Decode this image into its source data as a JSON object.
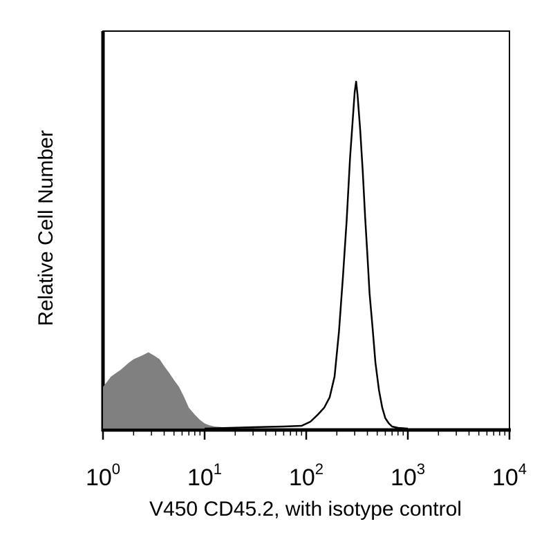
{
  "chart_data": {
    "type": "area",
    "xlabel": "V450 CD45.2, with isotype control",
    "ylabel": "Relative Cell Number",
    "x_scale": "log",
    "xlim": [
      1,
      10000
    ],
    "ylim": [
      0,
      1
    ],
    "grid": false,
    "legend": "none",
    "tick_labels": [
      {
        "value": 1,
        "base": "10",
        "exp": "0"
      },
      {
        "value": 10,
        "base": "10",
        "exp": "1"
      },
      {
        "value": 100,
        "base": "10",
        "exp": "2"
      },
      {
        "value": 1000,
        "base": "10",
        "exp": "3"
      },
      {
        "value": 10000,
        "base": "10",
        "exp": "4"
      }
    ],
    "series": [
      {
        "style": "filled",
        "color": "#808080",
        "x": [
          1.0,
          1.2,
          1.5,
          1.8,
          2.0,
          2.4,
          2.8,
          3.2,
          3.6,
          4.0,
          4.5,
          5.0,
          5.6,
          6.3,
          7.0,
          8.0,
          9.0,
          10.0,
          11.0,
          12.5,
          15.0,
          20.0,
          30.0
        ],
        "y": [
          0.12,
          0.15,
          0.17,
          0.19,
          0.2,
          0.21,
          0.22,
          0.21,
          0.2,
          0.18,
          0.16,
          0.14,
          0.12,
          0.09,
          0.06,
          0.04,
          0.025,
          0.015,
          0.01,
          0.006,
          0.004,
          0.002,
          0.0
        ]
      },
      {
        "style": "outline",
        "color": "#000000",
        "x": [
          10,
          30,
          60,
          90,
          110,
          130,
          150,
          170,
          190,
          210,
          230,
          250,
          270,
          290,
          300,
          310,
          320,
          340,
          360,
          380,
          400,
          420,
          450,
          480,
          520,
          560,
          600,
          650,
          700,
          800,
          1000
        ],
        "y": [
          0.0,
          0.004,
          0.006,
          0.008,
          0.02,
          0.04,
          0.06,
          0.09,
          0.15,
          0.28,
          0.44,
          0.6,
          0.78,
          0.91,
          0.97,
          1.0,
          0.96,
          0.86,
          0.74,
          0.61,
          0.5,
          0.39,
          0.29,
          0.19,
          0.11,
          0.06,
          0.03,
          0.015,
          0.006,
          0.002,
          0.0
        ]
      }
    ]
  }
}
